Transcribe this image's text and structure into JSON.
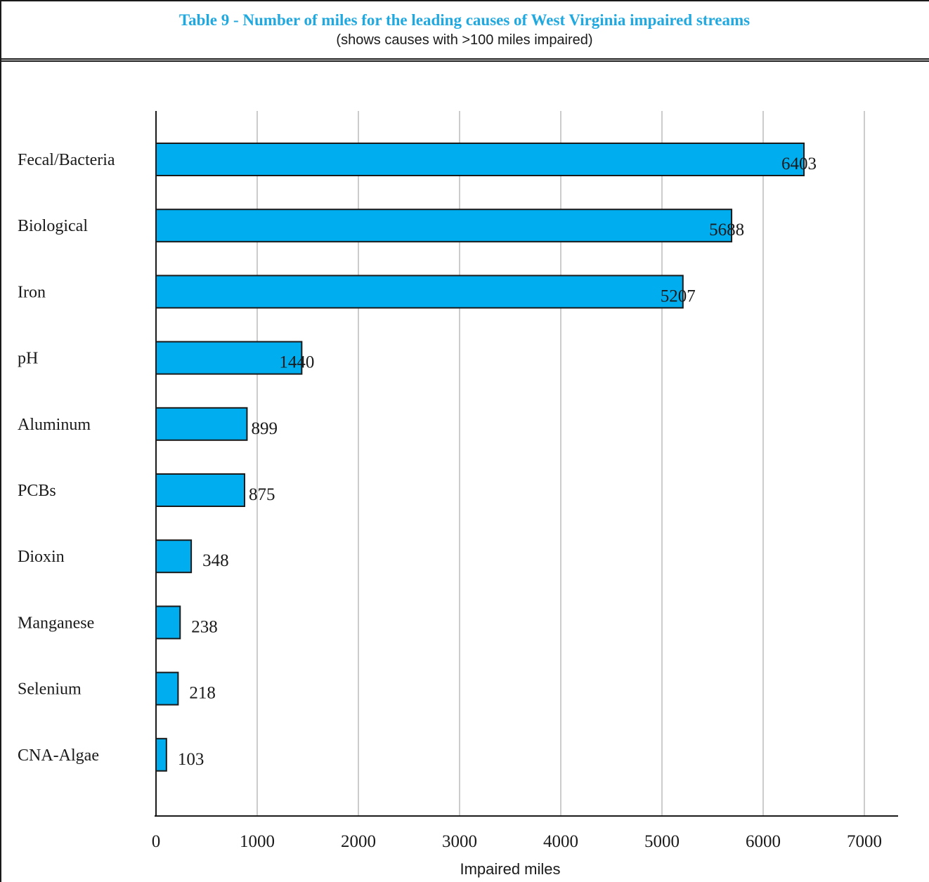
{
  "chart_data": {
    "type": "bar",
    "orientation": "horizontal",
    "title": "Table 9 - Number of miles for the leading causes of West Virginia impaired streams",
    "subtitle": "(shows causes with >100 miles impaired)",
    "xlabel": "Impaired miles",
    "ylabel": "",
    "categories": [
      "Fecal/Bacteria",
      "Biological",
      "Iron",
      "pH",
      "Aluminum",
      "PCBs",
      "Dioxin",
      "Manganese",
      "Selenium",
      "CNA-Algae"
    ],
    "values": [
      6403,
      5688,
      5207,
      1440,
      899,
      875,
      348,
      238,
      218,
      103
    ],
    "xlim": [
      0,
      7000
    ],
    "xticks": [
      0,
      1000,
      2000,
      3000,
      4000,
      5000,
      6000,
      7000
    ],
    "grid": "vertical",
    "legend": "none",
    "bar_color": "#00adef",
    "bar_outline_color": "#1a1a1a",
    "title_color": "#21a9df"
  }
}
